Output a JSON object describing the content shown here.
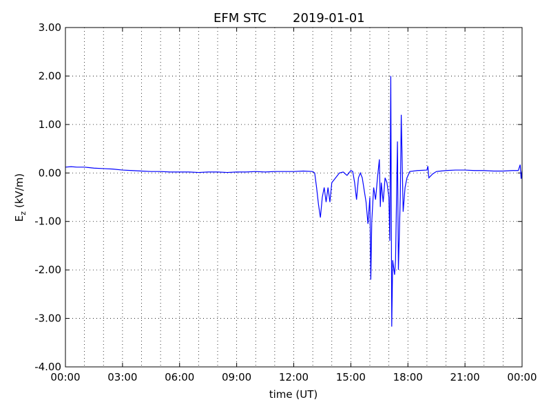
{
  "chart_data": {
    "type": "line",
    "title": "EFM STC",
    "date": "2019-01-01",
    "xlabel": "time (UT)",
    "ylabel": {
      "main": "E",
      "sub": "z",
      "unit": "(kV/m)"
    },
    "xlim": [
      0,
      24
    ],
    "ylim": [
      -4,
      3
    ],
    "xticks": [
      {
        "value": 0,
        "label": "00:00"
      },
      {
        "value": 3,
        "label": "03:00"
      },
      {
        "value": 6,
        "label": "06:00"
      },
      {
        "value": 9,
        "label": "09:00"
      },
      {
        "value": 12,
        "label": "12:00"
      },
      {
        "value": 15,
        "label": "15:00"
      },
      {
        "value": 18,
        "label": "18:00"
      },
      {
        "value": 21,
        "label": "21:00"
      },
      {
        "value": 24,
        "label": "00:00"
      }
    ],
    "xminor_ticks": [
      1,
      2,
      4,
      5,
      7,
      8,
      10,
      11,
      13,
      14,
      16,
      17,
      19,
      20,
      22,
      23
    ],
    "yticks": [
      {
        "value": -4,
        "label": "-4.00"
      },
      {
        "value": -3,
        "label": "-3.00"
      },
      {
        "value": -2,
        "label": "-2.00"
      },
      {
        "value": -1,
        "label": "-1.00"
      },
      {
        "value": 0,
        "label": "0.00"
      },
      {
        "value": 1,
        "label": "1.00"
      },
      {
        "value": 2,
        "label": "2.00"
      },
      {
        "value": 3,
        "label": "3.00"
      }
    ],
    "grid": true,
    "series": [
      {
        "color": "#0000ff",
        "x": [
          0,
          0.3,
          0.6,
          1,
          1.5,
          2,
          2.5,
          3,
          3.5,
          4,
          4.5,
          5,
          5.5,
          6,
          6.5,
          7,
          7.5,
          8,
          8.5,
          9,
          9.5,
          10,
          10.5,
          11,
          11.5,
          12,
          12.5,
          13,
          13.1,
          13.2,
          13.3,
          13.4,
          13.5,
          13.6,
          13.7,
          13.8,
          13.9,
          14,
          14.2,
          14.4,
          14.6,
          14.8,
          15,
          15.1,
          15.2,
          15.3,
          15.4,
          15.5,
          15.6,
          15.8,
          15.9,
          16,
          16.05,
          16.1,
          16.2,
          16.3,
          16.4,
          16.5,
          16.55,
          16.6,
          16.7,
          16.8,
          16.9,
          17,
          17.05,
          17.1,
          17.15,
          17.2,
          17.3,
          17.35,
          17.45,
          17.5,
          17.6,
          17.65,
          17.75,
          17.85,
          17.95,
          18.1,
          18.5,
          19,
          19.05,
          19.1,
          19.3,
          19.5,
          20,
          20.5,
          21,
          21.5,
          22,
          22.5,
          23,
          23.5,
          23.8,
          23.9,
          23.95,
          24
        ],
        "values": [
          0.12,
          0.13,
          0.12,
          0.12,
          0.1,
          0.09,
          0.08,
          0.06,
          0.05,
          0.04,
          0.03,
          0.03,
          0.02,
          0.02,
          0.02,
          0.01,
          0.02,
          0.02,
          0.01,
          0.02,
          0.02,
          0.03,
          0.02,
          0.03,
          0.03,
          0.03,
          0.04,
          0.03,
          0,
          -0.3,
          -0.65,
          -0.92,
          -0.5,
          -0.3,
          -0.6,
          -0.3,
          -0.6,
          -0.2,
          -0.1,
          0,
          0.02,
          -0.05,
          0.05,
          0.03,
          -0.2,
          -0.55,
          -0.1,
          0,
          -0.1,
          -0.6,
          -1.05,
          -0.5,
          -2.2,
          -1.0,
          -0.3,
          -0.55,
          -0.1,
          0.28,
          -0.7,
          -0.2,
          -0.6,
          -0.1,
          -0.2,
          -0.5,
          -1.4,
          2.0,
          -3.17,
          -1.8,
          -2.1,
          -1.8,
          0.65,
          -2.0,
          -0.5,
          1.2,
          -0.8,
          -0.3,
          -0.1,
          0.03,
          0.05,
          0.06,
          0.14,
          -0.1,
          -0.02,
          0.03,
          0.05,
          0.06,
          0.06,
          0.05,
          0.05,
          0.04,
          0.04,
          0.05,
          0.05,
          0.17,
          -0.12,
          0.05
        ]
      }
    ]
  }
}
